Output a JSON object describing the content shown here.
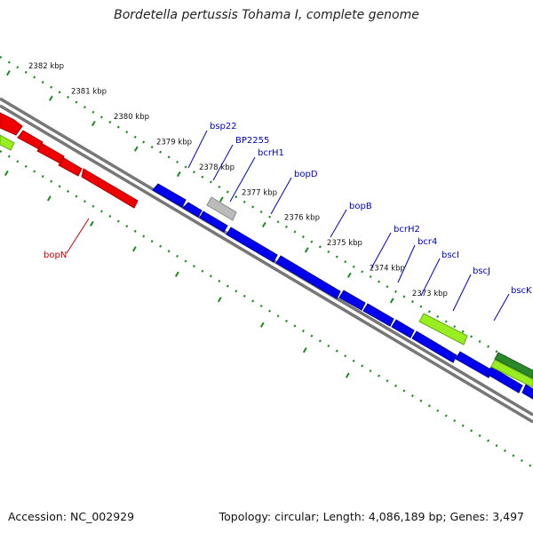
{
  "title": "Bordetella pertussis Tohama I, complete genome",
  "footer": {
    "accession": "Accession: NC_002929",
    "summary": "Topology: circular; Length: 4,086,189 bp; Genes: 3,497"
  },
  "colors": {
    "backbone": "#777777",
    "tick": "#1a8a1a",
    "forward_gene": "#0000ee",
    "reverse_gene": "#ee0000",
    "pseudogene": "#bbbbbb",
    "light_green": "#99ee22",
    "dark_green": "#2a8a2a",
    "forward_label": "#0000cc",
    "reverse_label": "#cc0000"
  },
  "ticks": [
    {
      "kbp": 2382,
      "label": "2382 kbp"
    },
    {
      "kbp": 2381,
      "label": "2381 kbp"
    },
    {
      "kbp": 2380,
      "label": "2380 kbp"
    },
    {
      "kbp": 2379,
      "label": "2379 kbp"
    },
    {
      "kbp": 2378,
      "label": "2378 kbp"
    },
    {
      "kbp": 2377,
      "label": "2377 kbp"
    },
    {
      "kbp": 2376,
      "label": "2376 kbp"
    },
    {
      "kbp": 2375,
      "label": "2375 kbp"
    },
    {
      "kbp": 2374,
      "label": "2374 kbp"
    },
    {
      "kbp": 2373,
      "label": "2373 kbp"
    }
  ],
  "genes": [
    {
      "name": "bopN",
      "strand": "reverse",
      "start": 2380.4,
      "end": 2379.6,
      "label": "bopN"
    },
    {
      "name": "bsp22",
      "strand": "forward",
      "start": 2378.95,
      "end": 2378.62,
      "label": "bsp22"
    },
    {
      "name": "BP2255",
      "strand": "pseudo",
      "start": 2378.2,
      "end": 2377.92,
      "label": "BP2255"
    },
    {
      "name": "bcrH1",
      "strand": "forward",
      "start": 2378.28,
      "end": 2378.05,
      "label": "bcrH1"
    },
    {
      "name": "bopD",
      "strand": "forward",
      "start": 2377.66,
      "end": 2377.12,
      "label": "bopD"
    },
    {
      "name": "bopB",
      "strand": "forward",
      "start": 2377.02,
      "end": 2376.12,
      "label": "bopB"
    },
    {
      "name": "bcrH2",
      "strand": "forward",
      "start": 2376.04,
      "end": 2375.7,
      "label": "bcrH2"
    },
    {
      "name": "bcr4",
      "strand": "forward",
      "start": 2375.63,
      "end": 2375.3,
      "label": "bcr4"
    },
    {
      "name": "bscI",
      "strand": "forward",
      "start": 2375.25,
      "end": 2374.98,
      "label": "bscI"
    },
    {
      "name": "bscJ",
      "strand": "forward",
      "start": 2374.42,
      "end": 2373.94,
      "label": "bscJ"
    },
    {
      "name": "bscK",
      "strand": "forward",
      "start": 2373.88,
      "end": 2373.48,
      "label": "bscK"
    }
  ]
}
